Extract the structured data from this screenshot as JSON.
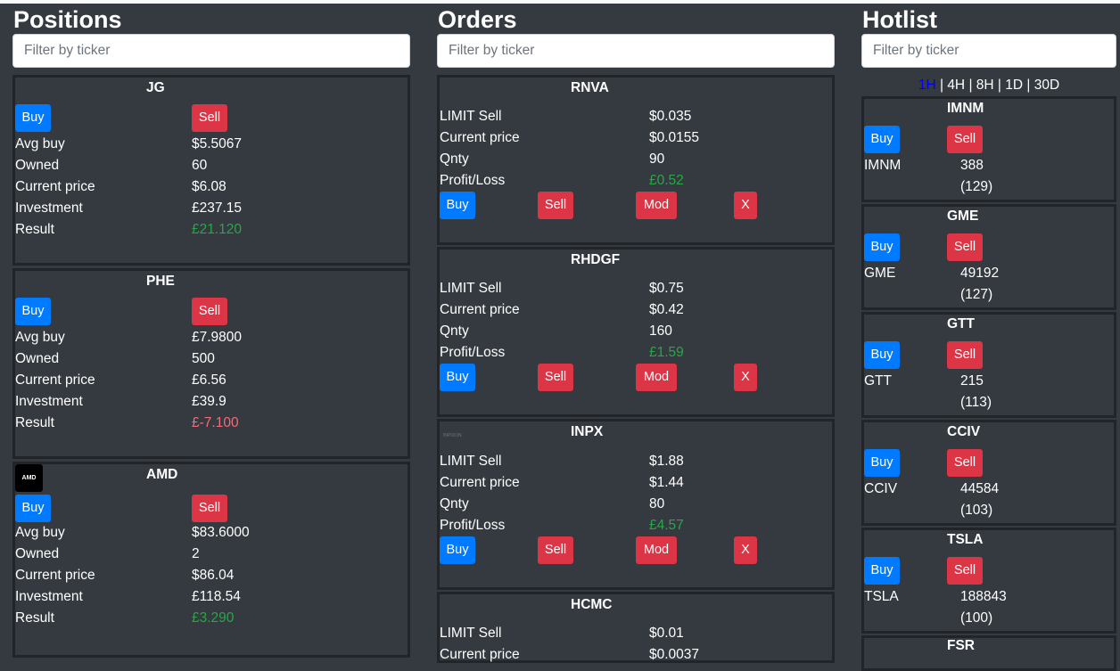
{
  "positions": {
    "title": "Positions",
    "filter_placeholder": "Filter by ticker",
    "buy_label": "Buy",
    "sell_label": "Sell",
    "row_labels": [
      "Avg buy",
      "Owned",
      "Current price",
      "Investment",
      "Result"
    ],
    "items": [
      {
        "ticker": "JG",
        "avg_buy": "$5.5067",
        "owned": "60",
        "current_price": "$6.08",
        "investment": "£237.15",
        "result": "£21.120",
        "result_status": "positive"
      },
      {
        "ticker": "PHE",
        "avg_buy": "£7.9800",
        "owned": "500",
        "current_price": "£6.56",
        "investment": "£39.9",
        "result": "£-7.100",
        "result_status": "negative"
      },
      {
        "ticker": "AMD",
        "logo_text": "AMD",
        "avg_buy": "$83.6000",
        "owned": "2",
        "current_price": "$86.04",
        "investment": "£118.54",
        "result": "£3.290",
        "result_status": "positive"
      }
    ]
  },
  "orders": {
    "title": "Orders",
    "filter_placeholder": "Filter by ticker",
    "buy_label": "Buy",
    "sell_label": "Sell",
    "mod_label": "Mod",
    "x_label": "X",
    "row_labels": [
      "Current price",
      "Qnty",
      "Profit/Loss"
    ],
    "items": [
      {
        "ticker": "RNVA",
        "order_type": "LIMIT Sell",
        "limit_price": "$0.035",
        "current_price": "$0.0155",
        "qnty": "90",
        "profit_loss": "£0.52"
      },
      {
        "ticker": "RHDGF",
        "order_type": "LIMIT Sell",
        "limit_price": "$0.75",
        "current_price": "$0.42",
        "qnty": "160",
        "profit_loss": "£1.59"
      },
      {
        "ticker": "INPX",
        "logo_text": "INPIXON",
        "order_type": "LIMIT Sell",
        "limit_price": "$1.88",
        "current_price": "$1.44",
        "qnty": "80",
        "profit_loss": "£4.57"
      },
      {
        "ticker": "HCMC",
        "order_type": "LIMIT Sell",
        "limit_price": "$0.01",
        "current_price": "$0.0037",
        "qnty": "",
        "profit_loss": ""
      }
    ]
  },
  "hotlist": {
    "title": "Hotlist",
    "filter_placeholder": "Filter by ticker",
    "buy_label": "Buy",
    "sell_label": "Sell",
    "timeframes": [
      "1H",
      "4H",
      "8H",
      "1D",
      "30D"
    ],
    "separator": " | ",
    "active_timeframe": "1H",
    "items": [
      {
        "ticker": "IMNM",
        "count": "388",
        "rank": "(129)"
      },
      {
        "ticker": "GME",
        "count": "49192",
        "rank": "(127)"
      },
      {
        "ticker": "GTT",
        "count": "215",
        "rank": "(113)"
      },
      {
        "ticker": "CCIV",
        "count": "44584",
        "rank": "(103)"
      },
      {
        "ticker": "TSLA",
        "count": "188843",
        "rank": "(100)"
      },
      {
        "ticker": "FSR",
        "count": "",
        "rank": ""
      }
    ]
  },
  "colors": {
    "background": "#343a40",
    "card_border": "#212529",
    "buy": "#007bff",
    "sell": "#dc3545",
    "positive": "#28a745",
    "negative": "#f56b7a",
    "active_timeframe": "#0000ee"
  }
}
